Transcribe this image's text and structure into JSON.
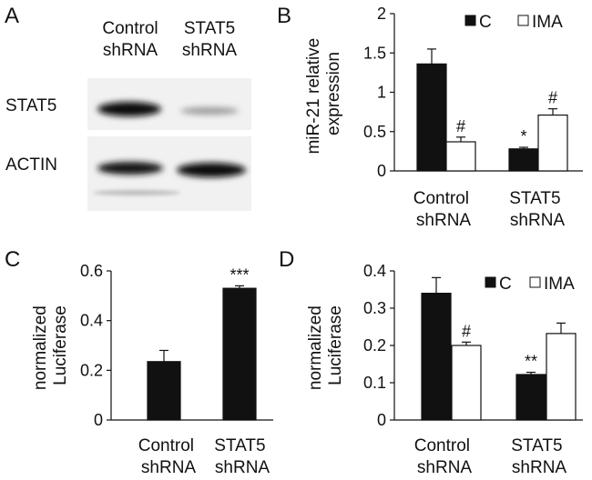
{
  "panels": {
    "A": {
      "letter": "A",
      "lane_labels": [
        {
          "line1": "Control",
          "line2": "shRNA"
        },
        {
          "line1": "STAT5",
          "line2": "shRNA"
        }
      ],
      "row_labels": [
        "STAT5",
        "ACTIN"
      ]
    },
    "B": {
      "letter": "B"
    },
    "C": {
      "letter": "C"
    },
    "D": {
      "letter": "D"
    }
  },
  "chart_data": [
    {
      "id": "B",
      "type": "bar",
      "ylabel": "miR-21 relative expression",
      "ylabel_lines": [
        "miR-21 relative",
        "expression"
      ],
      "ylim": [
        0,
        2
      ],
      "yticks": [
        "0",
        "0.5",
        "1",
        "1.5",
        "2"
      ],
      "categories": [
        {
          "line1": "Control",
          "line2": "shRNA"
        },
        {
          "line1": "STAT5",
          "line2": "shRNA"
        }
      ],
      "series": [
        {
          "name": "C",
          "color": "#111111",
          "values": [
            1.36,
            0.28
          ],
          "errors": [
            0.19,
            0.02
          ],
          "annotations": [
            "",
            "*"
          ]
        },
        {
          "name": "IMA",
          "color": "#ffffff",
          "values": [
            0.37,
            0.71
          ],
          "errors": [
            0.06,
            0.08
          ],
          "annotations": [
            "#",
            "#"
          ]
        }
      ],
      "legend": "top-right"
    },
    {
      "id": "C",
      "type": "bar",
      "ylabel": "normalized Luciferase",
      "ylabel_lines": [
        "normalized",
        "Luciferase"
      ],
      "ylim": [
        0,
        0.6
      ],
      "yticks": [
        "0",
        "0.2",
        "0.4",
        "0.6"
      ],
      "categories": [
        {
          "line1": "Control",
          "line2": "shRNA"
        },
        {
          "line1": "STAT5",
          "line2": "shRNA"
        }
      ],
      "series": [
        {
          "name": "",
          "color": "#111111",
          "values": [
            0.235,
            0.53
          ],
          "errors": [
            0.045,
            0.01
          ],
          "annotations": [
            "",
            "***"
          ]
        }
      ]
    },
    {
      "id": "D",
      "type": "bar",
      "ylabel": "normalized Luciferase",
      "ylabel_lines": [
        "normalized",
        "Luciferase"
      ],
      "ylim": [
        0,
        0.4
      ],
      "yticks": [
        "0",
        "0.1",
        "0.2",
        "0.3",
        "0.4"
      ],
      "categories": [
        {
          "line1": "Control",
          "line2": "shRNA"
        },
        {
          "line1": "STAT5",
          "line2": "shRNA"
        }
      ],
      "series": [
        {
          "name": "C",
          "color": "#111111",
          "values": [
            0.34,
            0.122
          ],
          "errors": [
            0.042,
            0.006
          ],
          "annotations": [
            "",
            "**"
          ]
        },
        {
          "name": "IMA",
          "color": "#ffffff",
          "values": [
            0.2,
            0.232
          ],
          "errors": [
            0.009,
            0.028
          ],
          "annotations": [
            "#",
            ""
          ]
        }
      ],
      "legend": "top-right"
    }
  ]
}
